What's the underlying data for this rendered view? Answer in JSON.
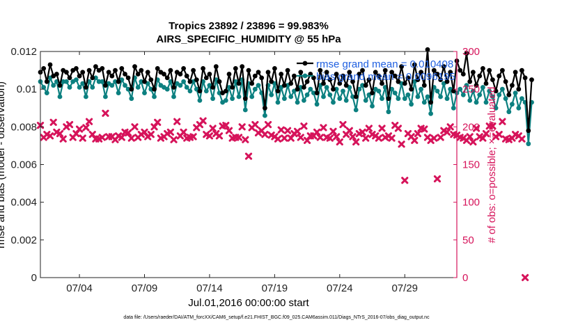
{
  "chart_data": {
    "type": "line",
    "title_line1": "Tropics 23892 / 23896 = 99.983%",
    "title_line2": "AIRS_SPECIFIC_HUMIDITY @ 55 hPa",
    "xlabel": "Jul.01,2016 00:00:00 start",
    "ylabel_left": "rmse and bias (model - observation)",
    "ylabel_right": "# of obs: o=possible; ×=evaluated",
    "footnote": "data file: /Users/raeder/DAI/ATM_forcXX/CAM6_setup/f.e21.FHIST_BGC.f09_025.CAM6assim.011/Diags_NTrS_2016-07/obs_diag_output.nc",
    "x_range": [
      1,
      33
    ],
    "x_ticks": [
      {
        "value": 4,
        "label": "07/04"
      },
      {
        "value": 9,
        "label": "07/09"
      },
      {
        "value": 14,
        "label": "07/14"
      },
      {
        "value": 19,
        "label": "07/19"
      },
      {
        "value": 24,
        "label": "07/24"
      },
      {
        "value": 29,
        "label": "07/29"
      }
    ],
    "ylim_left": [
      0,
      0.012
    ],
    "y_ticks_left": [
      "0",
      "0.002",
      "0.004",
      "0.006",
      "0.008",
      "0.01",
      "0.012"
    ],
    "y_ticks_left_values": [
      0,
      0.002,
      0.004,
      0.006,
      0.008,
      0.01,
      0.012
    ],
    "ylim_right": [
      0,
      300
    ],
    "y_ticks_right": [
      "0",
      "50",
      "100",
      "150",
      "200",
      "250",
      "300"
    ],
    "y_ticks_right_values": [
      0,
      50,
      100,
      150,
      200,
      250,
      300
    ],
    "x_start": 1.0,
    "x_step": 0.25,
    "series": [
      {
        "name": "rmse",
        "legend": "rmse grand mean = 0.010408",
        "color": "#000000",
        "axis": "left",
        "values": [
          0.0109,
          0.0111,
          0.0104,
          0.0113,
          0.0107,
          0.0108,
          0.0102,
          0.011,
          0.0109,
          0.0106,
          0.011,
          0.0111,
          0.0107,
          0.0109,
          0.0101,
          0.011,
          0.0106,
          0.0112,
          0.011,
          0.0111,
          0.0102,
          0.0109,
          0.0107,
          0.011,
          0.0104,
          0.0111,
          0.0108,
          0.0106,
          0.01,
          0.0112,
          0.0108,
          0.011,
          0.0104,
          0.0109,
          0.0105,
          0.01,
          0.0111,
          0.0109,
          0.0108,
          0.0106,
          0.011,
          0.0101,
          0.0109,
          0.0108,
          0.0111,
          0.0107,
          0.0104,
          0.011,
          0.0105,
          0.0099,
          0.0111,
          0.0106,
          0.0108,
          0.0101,
          0.0112,
          0.0104,
          0.0098,
          0.0099,
          0.0108,
          0.0101,
          0.0111,
          0.0103,
          0.0112,
          0.0095,
          0.011,
          0.0103,
          0.0107,
          0.0109,
          0.0106,
          0.009,
          0.0109,
          0.0104,
          0.0111,
          0.0099,
          0.0108,
          0.0102,
          0.011,
          0.0103,
          0.0107,
          0.01,
          0.0109,
          0.0101,
          0.0104,
          0.0108,
          0.0106,
          0.0098,
          0.011,
          0.0103,
          0.0109,
          0.0105,
          0.01,
          0.0108,
          0.0103,
          0.0107,
          0.0102,
          0.0109,
          0.0104,
          0.0096,
          0.0108,
          0.011,
          0.0102,
          0.0105,
          0.0098,
          0.0109,
          0.0107,
          0.0103,
          0.011,
          0.0095,
          0.0109,
          0.0107,
          0.0104,
          0.0112,
          0.0103,
          0.0106,
          0.01,
          0.0113,
          0.0105,
          0.0109,
          0.0102,
          0.0121,
          0.0093,
          0.011,
          0.0108,
          0.0105,
          0.0112,
          0.0104,
          0.0109,
          0.0099,
          0.0115,
          0.011,
          0.0108,
          0.0119,
          0.0104,
          0.0109,
          0.0102,
          0.0107,
          0.0111,
          0.0103,
          0.011,
          0.0105,
          0.0099,
          0.0107,
          0.011,
          0.0104,
          0.0097,
          0.0102,
          0.0109,
          0.01,
          0.011,
          0.0106,
          0.0078,
          0.0105
        ]
      },
      {
        "name": "bias",
        "legend": "bias grand mean = 0.0096195",
        "color": "#0c8080",
        "axis": "left",
        "values": [
          0.0104,
          0.0101,
          0.0098,
          0.0106,
          0.0102,
          0.0104,
          0.0096,
          0.0104,
          0.0104,
          0.0101,
          0.0104,
          0.0105,
          0.0101,
          0.0103,
          0.0096,
          0.0104,
          0.0101,
          0.0106,
          0.0104,
          0.0104,
          0.0096,
          0.0103,
          0.0102,
          0.0104,
          0.0098,
          0.0105,
          0.0102,
          0.01,
          0.0095,
          0.0106,
          0.0101,
          0.0104,
          0.0098,
          0.0103,
          0.01,
          0.0096,
          0.0105,
          0.0102,
          0.0101,
          0.01,
          0.0104,
          0.0096,
          0.0103,
          0.0102,
          0.0104,
          0.0101,
          0.0099,
          0.0104,
          0.01,
          0.0094,
          0.0104,
          0.0099,
          0.0102,
          0.0095,
          0.0105,
          0.0098,
          0.0093,
          0.0094,
          0.0101,
          0.0095,
          0.0104,
          0.0096,
          0.0105,
          0.0089,
          0.0103,
          0.0096,
          0.01,
          0.0102,
          0.0098,
          0.0086,
          0.0102,
          0.0097,
          0.0103,
          0.0093,
          0.0101,
          0.0095,
          0.0102,
          0.0096,
          0.0099,
          0.0093,
          0.0101,
          0.0094,
          0.0097,
          0.01,
          0.0098,
          0.0092,
          0.0102,
          0.0096,
          0.0101,
          0.0097,
          0.0093,
          0.01,
          0.0095,
          0.0099,
          0.0094,
          0.0101,
          0.0096,
          0.0089,
          0.01,
          0.0102,
          0.0094,
          0.0097,
          0.0091,
          0.01,
          0.0099,
          0.0095,
          0.0101,
          0.0088,
          0.01,
          0.0098,
          0.0095,
          0.0103,
          0.0095,
          0.0097,
          0.0092,
          0.0104,
          0.0096,
          0.01,
          0.0093,
          0.0096,
          0.0087,
          0.0101,
          0.0099,
          0.0096,
          0.0103,
          0.0095,
          0.01,
          0.009,
          0.0098,
          0.01,
          0.0097,
          0.0102,
          0.0094,
          0.0099,
          0.0093,
          0.0097,
          0.0101,
          0.0093,
          0.0099,
          0.0096,
          0.009,
          0.0097,
          0.01,
          0.0095,
          0.0088,
          0.0092,
          0.0098,
          0.009,
          0.0095,
          0.0093,
          0.0071,
          0.0093
        ]
      },
      {
        "name": "obs_count",
        "legend": "",
        "color": "#d6135a",
        "axis": "right",
        "marker": "x",
        "values": [
          202,
          186,
          190,
          188,
          206,
          193,
          191,
          184,
          200,
          203,
          186,
          191,
          197,
          185,
          199,
          207,
          190,
          184,
          184,
          186,
          218,
          187,
          187,
          183,
          188,
          186,
          193,
          192,
          185,
          200,
          186,
          190,
          193,
          187,
          190,
          200,
          206,
          185,
          187,
          191,
          193,
          183,
          207,
          188,
          193,
          185,
          186,
          187,
          199,
          203,
          208,
          190,
          188,
          198,
          191,
          188,
          201,
          202,
          195,
          185,
          186,
          186,
          200,
          183,
          161,
          199,
          203,
          192,
          195,
          190,
          203,
          189,
          187,
          184,
          196,
          185,
          195,
          185,
          191,
          194,
          186,
          201,
          182,
          188,
          188,
          193,
          186,
          199,
          186,
          185,
          194,
          187,
          180,
          203,
          190,
          195,
          187,
          180,
          191,
          193,
          185,
          198,
          190,
          188,
          185,
          198,
          186,
          188,
          185,
          202,
          198,
          177,
          129,
          191,
          187,
          182,
          191,
          198,
          197,
          186,
          182,
          185,
          131,
          186,
          195,
          193,
          200,
          190,
          189,
          186,
          185,
          182,
          187,
          180,
          198,
          187,
          185,
          191,
          201,
          201,
          187,
          190,
          207,
          184,
          183,
          185,
          190,
          188,
          184,
          0
        ]
      }
    ]
  }
}
